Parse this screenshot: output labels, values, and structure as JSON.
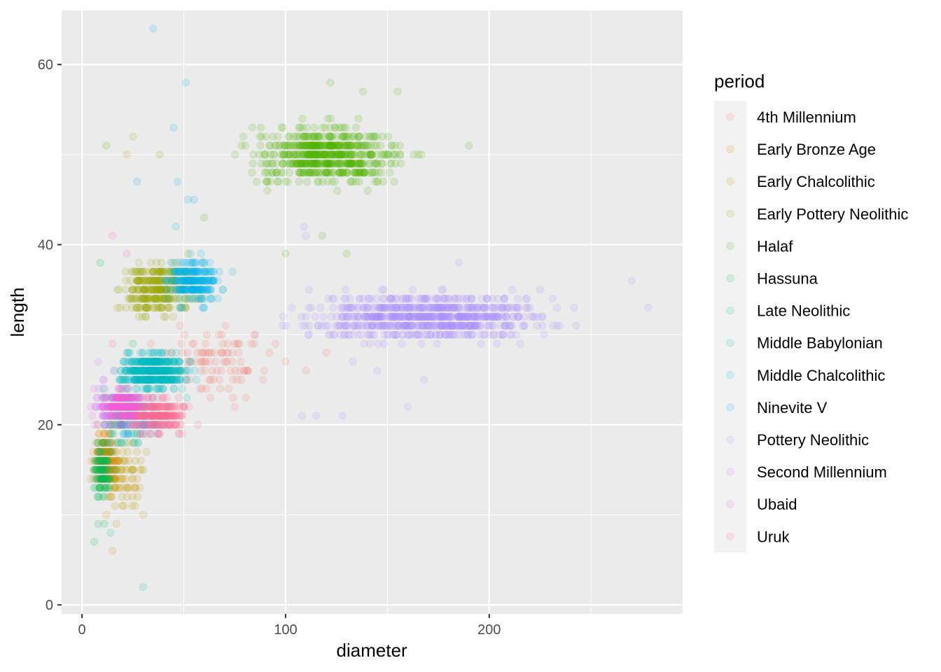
{
  "chart_data": {
    "type": "scatter",
    "xlabel": "diameter",
    "ylabel": "length",
    "xlim": [
      -10,
      295
    ],
    "ylim": [
      -1,
      66
    ],
    "x_ticks": [
      0,
      100,
      200
    ],
    "y_ticks": [
      0,
      20,
      40,
      60
    ],
    "x_tick_labels": [
      "0",
      "100",
      "200"
    ],
    "y_tick_labels": [
      "0",
      "20",
      "40",
      "60"
    ],
    "grid": true,
    "point_alpha": 0.15,
    "legend": {
      "title": "period",
      "position": "right"
    },
    "series": [
      {
        "name": "4th Millennium",
        "color": "#F8766D",
        "clusters": [
          {
            "cx": 65,
            "cy": 27,
            "sx": 20,
            "sy": 3,
            "n": 90
          }
        ],
        "points": [
          [
            100,
            27
          ],
          [
            110,
            26
          ],
          [
            95,
            29
          ],
          [
            85,
            30
          ],
          [
            120,
            28
          ]
        ]
      },
      {
        "name": "Early Bronze Age",
        "color": "#E38900",
        "clusters": [
          {
            "cx": 12,
            "cy": 16,
            "sx": 5,
            "sy": 2.5,
            "n": 160
          }
        ],
        "points": [
          [
            15,
            6
          ],
          [
            12,
            10
          ],
          [
            22,
            50
          ]
        ]
      },
      {
        "name": "Early Chalcolithic",
        "color": "#C49A00",
        "clusters": [
          {
            "cx": 20,
            "cy": 14,
            "sx": 8,
            "sy": 3,
            "n": 80
          }
        ],
        "points": [
          [
            17,
            9
          ],
          [
            25,
            18
          ]
        ]
      },
      {
        "name": "Early Pottery Neolithic",
        "color": "#99A800",
        "clusters": [
          {
            "cx": 38,
            "cy": 35,
            "sx": 14,
            "sy": 2.5,
            "n": 320
          }
        ],
        "points": [
          [
            25,
            52
          ],
          [
            38,
            50
          ],
          [
            52,
            39
          ]
        ]
      },
      {
        "name": "Halaf",
        "color": "#53B400",
        "clusters": [
          {
            "cx": 120,
            "cy": 50,
            "sx": 28,
            "sy": 2.5,
            "n": 650
          }
        ],
        "points": [
          [
            122,
            58
          ],
          [
            138,
            57
          ],
          [
            155,
            57
          ],
          [
            190,
            51
          ],
          [
            12,
            51
          ],
          [
            60,
            43
          ],
          [
            118,
            41
          ],
          [
            130,
            39
          ],
          [
            100,
            39
          ]
        ]
      },
      {
        "name": "Hassuna",
        "color": "#00BC56",
        "clusters": [
          {
            "cx": 10,
            "cy": 15,
            "sx": 4,
            "sy": 2.5,
            "n": 110
          }
        ],
        "points": [
          [
            8,
            9
          ],
          [
            11,
            9
          ],
          [
            6,
            7
          ],
          [
            9,
            38
          ],
          [
            25,
            29
          ]
        ]
      },
      {
        "name": "Late Neolithic",
        "color": "#00C094",
        "clusters": [
          {
            "cx": 20,
            "cy": 21,
            "sx": 8,
            "sy": 3,
            "n": 90
          }
        ],
        "points": [
          [
            14,
            8
          ],
          [
            30,
            20
          ]
        ]
      },
      {
        "name": "Middle Babylonian",
        "color": "#00BFC4",
        "clusters": [
          {
            "cx": 35,
            "cy": 26,
            "sx": 12,
            "sy": 1.5,
            "n": 500
          }
        ],
        "points": [
          [
            30,
            2
          ],
          [
            22,
            22
          ]
        ]
      },
      {
        "name": "Middle Chalcolithic",
        "color": "#00B6EB",
        "clusters": [
          {
            "cx": 55,
            "cy": 36,
            "sx": 10,
            "sy": 2,
            "n": 260
          }
        ],
        "points": [
          [
            35,
            64
          ],
          [
            51,
            58
          ],
          [
            45,
            53
          ],
          [
            47,
            47
          ],
          [
            52,
            45
          ],
          [
            46,
            42
          ],
          [
            74,
            37
          ]
        ]
      },
      {
        "name": "Ninevite V",
        "color": "#06A4FF",
        "clusters": [
          {
            "cx": 28,
            "cy": 21,
            "sx": 10,
            "sy": 1.5,
            "n": 90
          }
        ],
        "points": [
          [
            27,
            47
          ],
          [
            55,
            45
          ]
        ]
      },
      {
        "name": "Pottery Neolithic",
        "color": "#A58AFF",
        "clusters": [
          {
            "cx": 170,
            "cy": 32,
            "sx": 45,
            "sy": 2,
            "n": 750
          }
        ],
        "points": [
          [
            109,
            42
          ],
          [
            110,
            41
          ],
          [
            108,
            21
          ],
          [
            115,
            21
          ],
          [
            128,
            21
          ],
          [
            160,
            22
          ],
          [
            168,
            25
          ],
          [
            145,
            26
          ],
          [
            133,
            27
          ],
          [
            270,
            36
          ],
          [
            278,
            33
          ],
          [
            185,
            38
          ]
        ]
      },
      {
        "name": "Second Millennium",
        "color": "#DF70F8",
        "clusters": [
          {
            "cx": 12,
            "cy": 22,
            "sx": 6,
            "sy": 2.5,
            "n": 60
          }
        ],
        "points": [
          [
            8,
            27
          ],
          [
            5,
            21
          ]
        ]
      },
      {
        "name": "Ubaid",
        "color": "#FB61D7",
        "clusters": [
          {
            "cx": 22,
            "cy": 22,
            "sx": 8,
            "sy": 1.5,
            "n": 220
          }
        ],
        "points": [
          [
            15,
            41
          ],
          [
            22,
            39
          ]
        ]
      },
      {
        "name": "Uruk",
        "color": "#FF6C91",
        "clusters": [
          {
            "cx": 38,
            "cy": 21,
            "sx": 10,
            "sy": 1.5,
            "n": 230
          }
        ],
        "points": [
          [
            57,
            20
          ],
          [
            75,
            22
          ],
          [
            15,
            29
          ]
        ]
      }
    ]
  }
}
